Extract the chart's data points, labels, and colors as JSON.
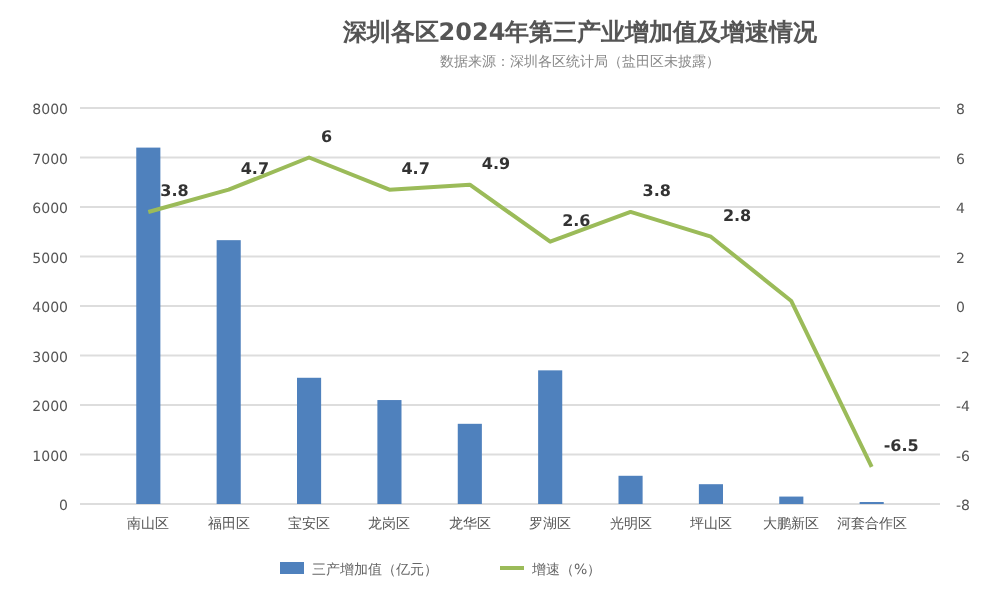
{
  "chart_data": {
    "type": "bar",
    "title": "深圳各区2024年第三产业增加值及增速情况",
    "subtitle": "数据来源：深圳各区统计局（盐田区未披露）",
    "categories": [
      "南山区",
      "福田区",
      "宝安区",
      "龙岗区",
      "龙华区",
      "罗湖区",
      "光明区",
      "坪山区",
      "大鹏新区",
      "河套合作区"
    ],
    "series": [
      {
        "name": "三产增加值（亿元）",
        "color": "#4f81bd",
        "values": [
          7200,
          5330,
          2550,
          2100,
          1620,
          2700,
          570,
          400,
          150,
          40
        ]
      },
      {
        "name": "增速（%）",
        "type": "line",
        "axis": "y2",
        "color": "#9bbb59",
        "values": [
          3.8,
          4.7,
          6,
          4.7,
          4.9,
          2.6,
          3.8,
          2.8,
          0.2,
          -6.5
        ],
        "value_labels": [
          "3.8",
          "4.7",
          "6",
          "4.7",
          "4.9",
          "2.6",
          "3.8",
          "2.8",
          null,
          "-6.5"
        ]
      }
    ],
    "ylim": [
      0,
      8000
    ],
    "yticks": [
      0,
      1000,
      2000,
      3000,
      4000,
      5000,
      6000,
      7000,
      8000
    ],
    "y2lim": [
      -8,
      8
    ],
    "y2ticks": [
      -8,
      -6,
      -4,
      -2,
      0,
      2,
      4,
      6,
      8
    ],
    "grid": "y",
    "legend": "bottom",
    "marker": "none"
  }
}
